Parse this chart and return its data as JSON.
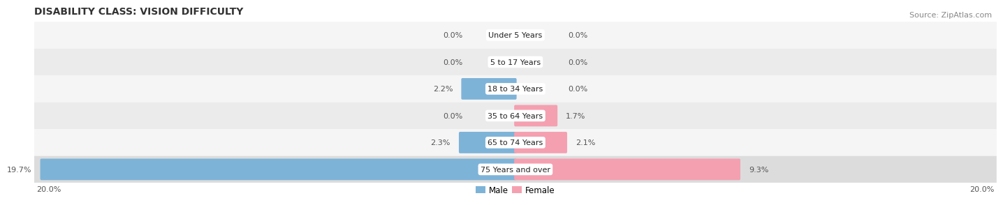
{
  "title": "DISABILITY CLASS: VISION DIFFICULTY",
  "source": "Source: ZipAtlas.com",
  "categories": [
    "Under 5 Years",
    "5 to 17 Years",
    "18 to 34 Years",
    "35 to 64 Years",
    "65 to 74 Years",
    "75 Years and over"
  ],
  "male_values": [
    0.0,
    0.0,
    2.2,
    0.0,
    2.3,
    19.7
  ],
  "female_values": [
    0.0,
    0.0,
    0.0,
    1.7,
    2.1,
    9.3
  ],
  "male_color": "#7EB3D8",
  "female_color": "#F4A0B0",
  "row_bg_even": "#F2F2F2",
  "row_bg_odd": "#FAFAFA",
  "row_bg_last": "#E8E8E8",
  "max_val": 20.0,
  "axis_label_left": "20.0%",
  "axis_label_right": "20.0%",
  "title_fontsize": 10,
  "source_fontsize": 8,
  "label_fontsize": 8,
  "category_fontsize": 8,
  "legend_fontsize": 8.5
}
